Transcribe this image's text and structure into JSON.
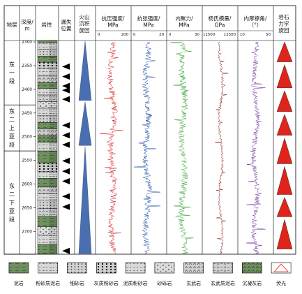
{
  "headers": {
    "layer": "地层",
    "depth": "深度/\nm",
    "lithology": "岩性",
    "loss": "漏失\n位置",
    "volcanic": "火山\n沉积\n旋回",
    "compressive": "抗压强度/\nMPa",
    "tensile": "抗张强度/\nMPa",
    "cohesion": "内聚力/\nMPa",
    "youngs": "杨氏模量/\nGPa",
    "friction": "内摩擦角/\n（°）",
    "mechanics": "岩石\n力学\n旋回"
  },
  "scales": {
    "compressive": [
      "0",
      "200"
    ],
    "tensile": [
      "0",
      "20"
    ],
    "cohesion": [
      "0",
      "30"
    ],
    "youngs": [
      "11500",
      "12500"
    ],
    "friction": [
      "10",
      "50"
    ]
  },
  "depth_ticks": [
    "2300",
    "2350",
    "2400",
    "2450",
    "2500",
    "2550",
    "2600",
    "2650",
    "2700"
  ],
  "segments": [
    {
      "name": "东一段",
      "top": 2297,
      "bottom": 2433
    },
    {
      "name": "东二上亚段",
      "top": 2433,
      "bottom": 2530
    },
    {
      "name": "东二下亚段",
      "top": 2530,
      "bottom": 2748
    }
  ],
  "loss_depths": [
    2352,
    2373,
    2393,
    2402,
    2421,
    2476,
    2497,
    2517,
    2551,
    2573,
    2594,
    2626,
    2648,
    2741
  ],
  "volcanic_cycles": [
    {
      "top": 2297,
      "bottom": 2425,
      "dir": "up"
    },
    {
      "top": 2425,
      "bottom": 2520,
      "dir": "up"
    },
    {
      "top": 2520,
      "bottom": 2748,
      "dir": "up"
    }
  ],
  "mechanics_cycles": [
    {
      "top": 2297,
      "bottom": 2345
    },
    {
      "top": 2345,
      "bottom": 2400
    },
    {
      "top": 2400,
      "bottom": 2450
    },
    {
      "top": 2450,
      "bottom": 2500
    },
    {
      "top": 2500,
      "bottom": 2560
    },
    {
      "top": 2560,
      "bottom": 2625
    },
    {
      "top": 2625,
      "bottom": 2672
    },
    {
      "top": 2672,
      "bottom": 2740
    }
  ],
  "lithology_layers": [
    {
      "top": 2297,
      "bottom": 2302,
      "type": "mudstone"
    },
    {
      "top": 2302,
      "bottom": 2315,
      "type": "silty-mudstone"
    },
    {
      "top": 2315,
      "bottom": 2330,
      "type": "fine-sandstone"
    },
    {
      "top": 2330,
      "bottom": 2343,
      "type": "mudstone"
    },
    {
      "top": 2343,
      "bottom": 2356,
      "type": "calcareous-siltstone"
    },
    {
      "top": 2356,
      "bottom": 2372,
      "type": "silty-mudstone"
    },
    {
      "top": 2372,
      "bottom": 2386,
      "type": "basalt"
    },
    {
      "top": 2386,
      "bottom": 2398,
      "type": "mudstone"
    },
    {
      "top": 2398,
      "bottom": 2412,
      "type": "argillaceous-siltstone"
    },
    {
      "top": 2412,
      "bottom": 2426,
      "type": "basaltic-mudstone"
    },
    {
      "top": 2426,
      "bottom": 2440,
      "type": "gravel-sandstone"
    },
    {
      "top": 2440,
      "bottom": 2456,
      "type": "silty-mudstone"
    },
    {
      "top": 2456,
      "bottom": 2470,
      "type": "fine-sandstone"
    },
    {
      "top": 2470,
      "bottom": 2484,
      "type": "mudstone"
    },
    {
      "top": 2484,
      "bottom": 2498,
      "type": "basalt"
    },
    {
      "top": 2498,
      "bottom": 2512,
      "type": "sedimentary-tuff"
    },
    {
      "top": 2512,
      "bottom": 2530,
      "type": "silty-mudstone"
    },
    {
      "top": 2530,
      "bottom": 2556,
      "type": "mudstone"
    },
    {
      "top": 2556,
      "bottom": 2574,
      "type": "calcareous-siltstone"
    },
    {
      "top": 2574,
      "bottom": 2588,
      "type": "argillaceous-siltstone"
    },
    {
      "top": 2588,
      "bottom": 2606,
      "type": "mudstone"
    },
    {
      "top": 2606,
      "bottom": 2620,
      "type": "basalt"
    },
    {
      "top": 2620,
      "bottom": 2634,
      "type": "silty-mudstone"
    },
    {
      "top": 2634,
      "bottom": 2652,
      "type": "fine-sandstone"
    },
    {
      "top": 2652,
      "bottom": 2668,
      "type": "basaltic-mudstone"
    },
    {
      "top": 2668,
      "bottom": 2690,
      "type": "mudstone"
    },
    {
      "top": 2690,
      "bottom": 2708,
      "type": "gravel-sandstone"
    },
    {
      "top": 2708,
      "bottom": 2728,
      "type": "silty-mudstone"
    },
    {
      "top": 2728,
      "bottom": 2748,
      "type": "mudstone"
    }
  ],
  "legend": [
    {
      "key": "mudstone",
      "label": "泥岩"
    },
    {
      "key": "silty-mudstone",
      "label": "粉砂质泥岩"
    },
    {
      "key": "fine-sandstone",
      "label": "细砂岩"
    },
    {
      "key": "calcareous-siltstone",
      "label": "灰质粉砂岩"
    },
    {
      "key": "argillaceous-siltstone",
      "label": "泥质粉砂岩"
    },
    {
      "key": "gravel-sandstone",
      "label": "砂砾岩"
    },
    {
      "key": "basalt",
      "label": "玄武岩"
    },
    {
      "key": "basaltic-mudstone",
      "label": "玄武质泥岩"
    },
    {
      "key": "sedimentary-tuff",
      "label": "沉凝灰岩"
    },
    {
      "key": "fluorescence",
      "label": "荧光"
    }
  ],
  "colors": {
    "compressive": "#d62728",
    "tensile": "#1f4fa8",
    "cohesion": "#2ca02c",
    "youngs": "#8b1a1a",
    "friction": "#6a2c9c",
    "volcanic": "#4a6fb0",
    "mechanics": "#e0241b",
    "basalt": "#5b8a4a",
    "mudstone": "#6e8f5e"
  }
}
